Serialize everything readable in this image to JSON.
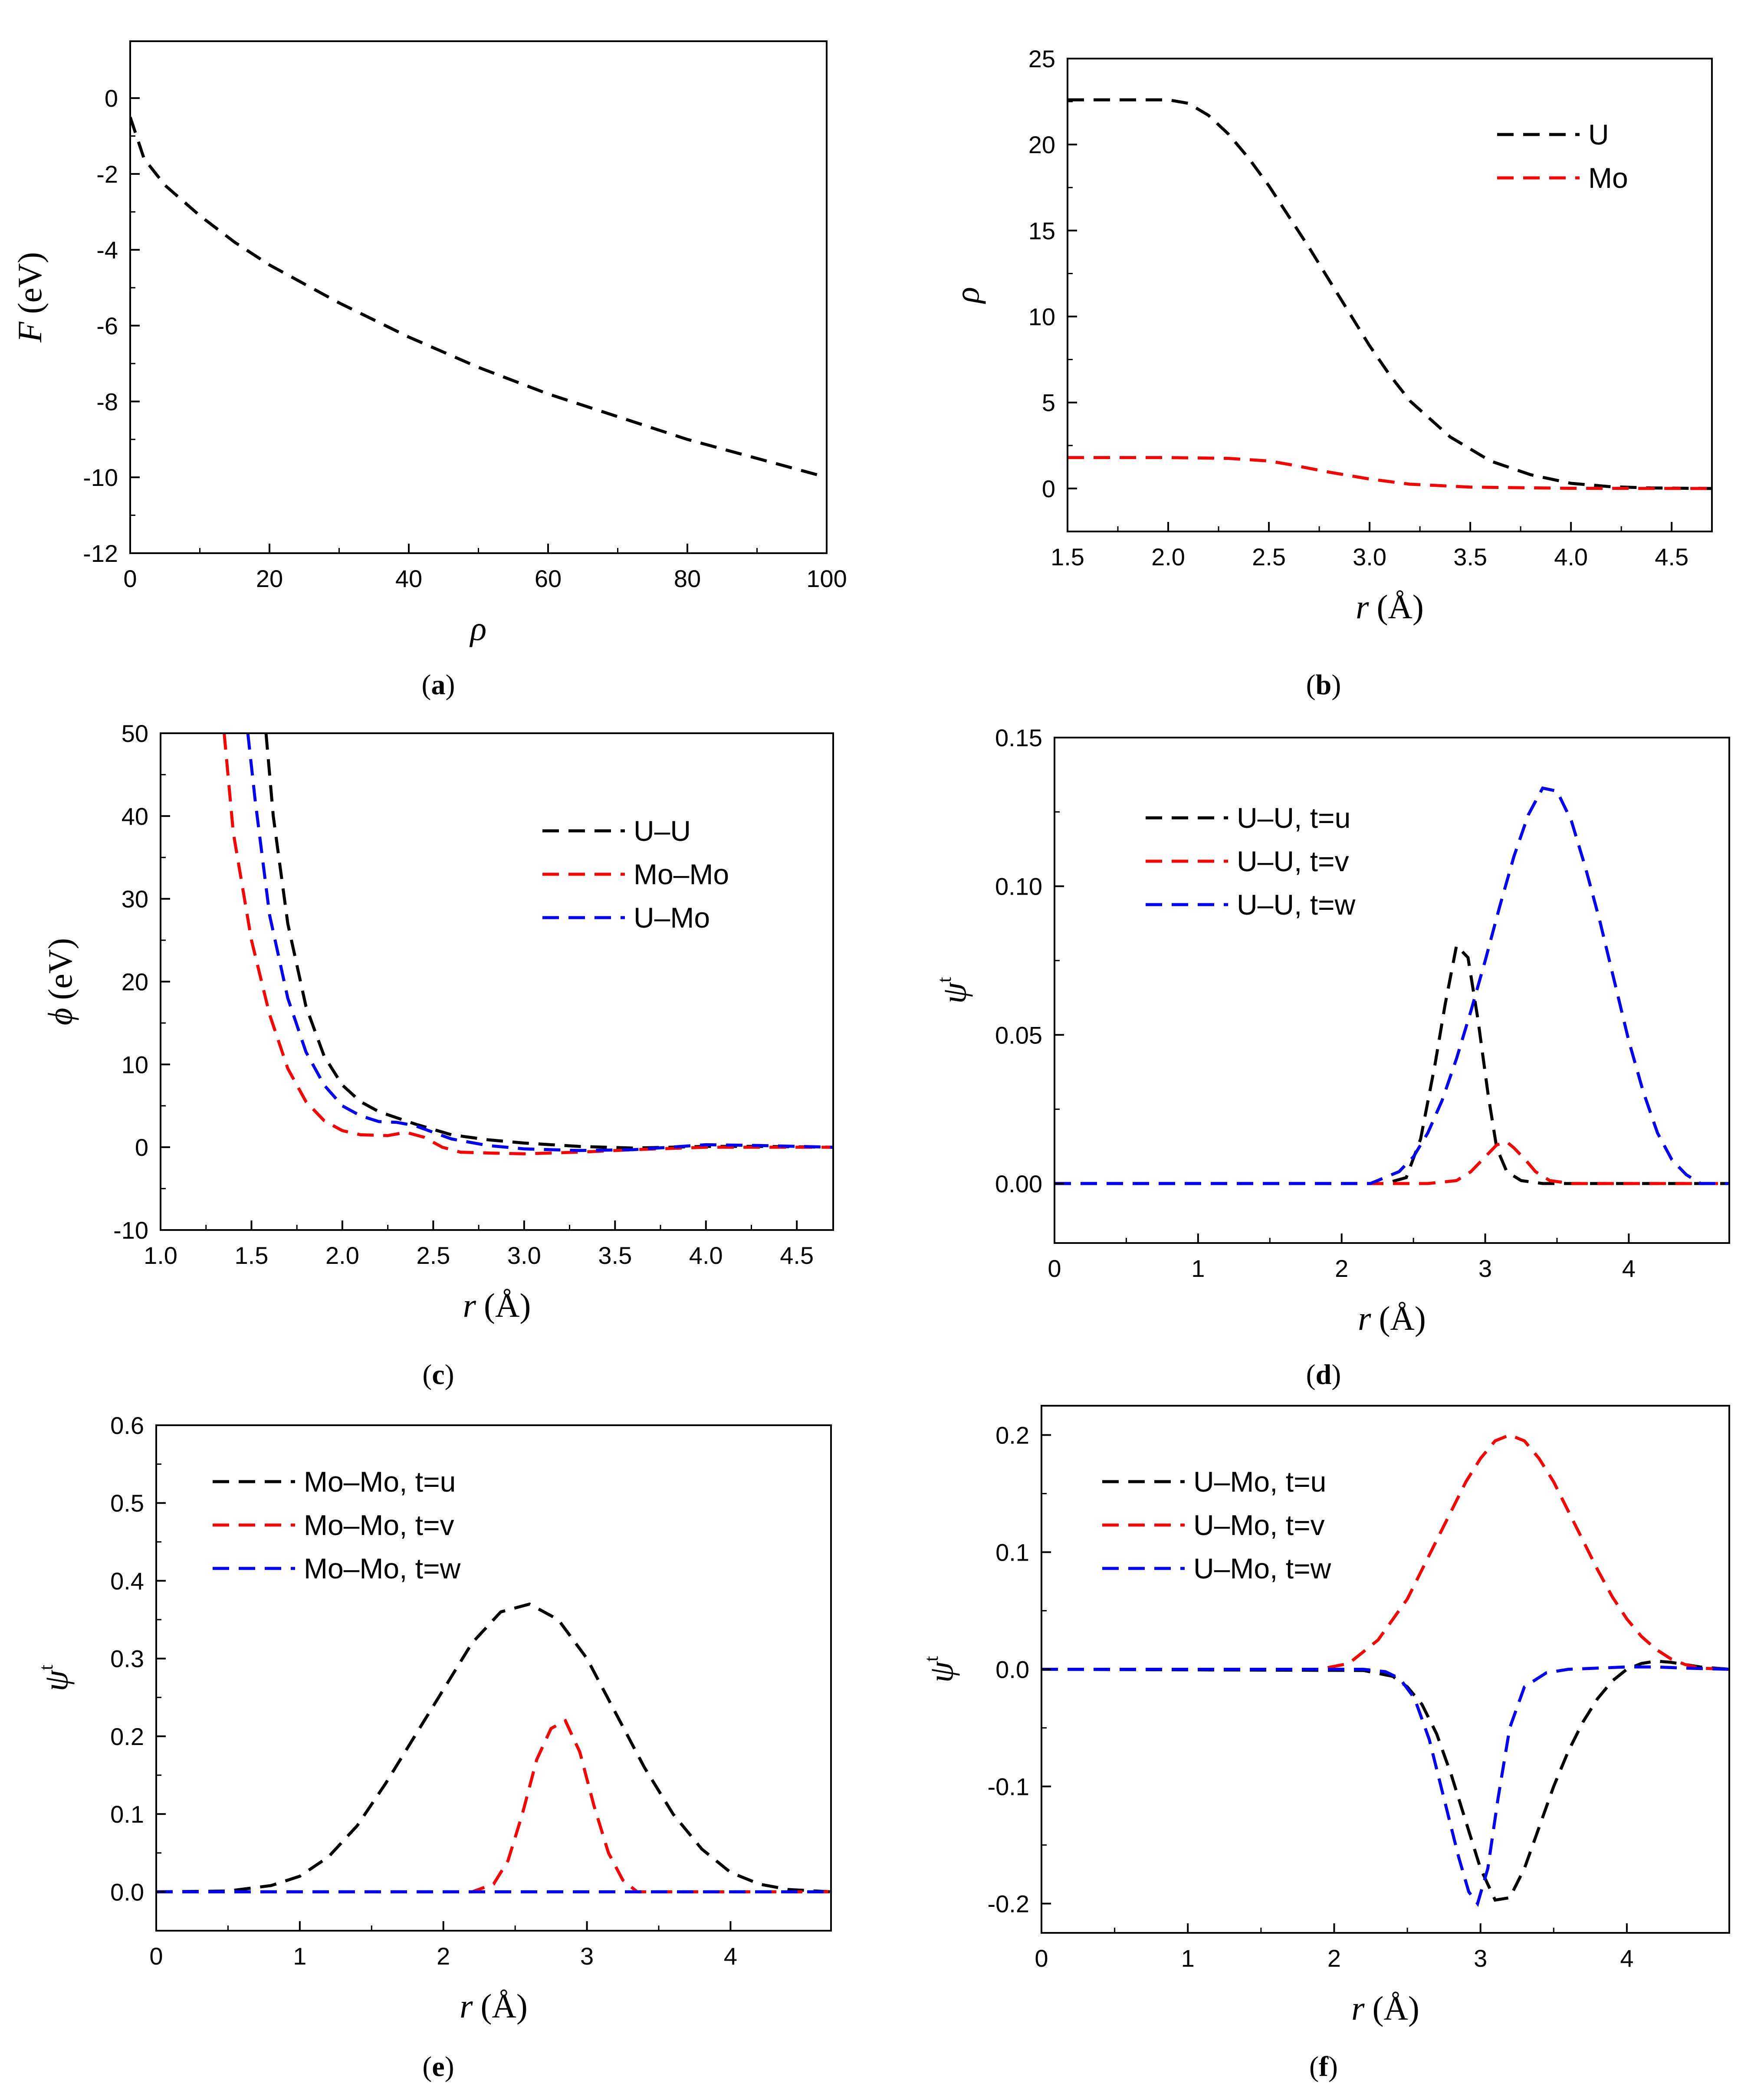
{
  "chart_data": [
    {
      "id": "a",
      "type": "line",
      "caption": "(a)",
      "caption_letter": "a",
      "ylabel_symbol": "F",
      "ylabel_unit": "(eV)",
      "xlabel_symbol": "ρ",
      "xlabel_unit": "",
      "xlim": [
        0,
        100
      ],
      "ylim": [
        -12,
        1.5
      ],
      "xticks": [
        0,
        20,
        40,
        60,
        80,
        100
      ],
      "yticks": [
        0,
        -2,
        -4,
        -6,
        -8,
        -10,
        -12
      ],
      "series": [
        {
          "name": "F",
          "color": "#000000",
          "x": [
            0,
            2,
            5,
            10,
            15,
            20,
            30,
            40,
            50,
            60,
            70,
            80,
            90,
            100
          ],
          "y": [
            -0.5,
            -1.6,
            -2.3,
            -3.1,
            -3.8,
            -4.4,
            -5.4,
            -6.3,
            -7.1,
            -7.8,
            -8.4,
            -9.0,
            -9.5,
            -10.0
          ]
        }
      ],
      "legend": []
    },
    {
      "id": "b",
      "type": "line",
      "caption": "(b)",
      "caption_letter": "b",
      "ylabel_symbol": "ρ",
      "ylabel_unit": "",
      "xlabel_symbol": "r",
      "xlabel_unit": "(Å)",
      "xlim": [
        1.5,
        4.7
      ],
      "ylim": [
        -2.5,
        25
      ],
      "xticks": [
        1.5,
        2.0,
        2.5,
        3.0,
        3.5,
        4.0,
        4.5
      ],
      "xtick_labels": [
        "1.5",
        "2.0",
        "2.5",
        "3.0",
        "3.5",
        "4.0",
        "4.5"
      ],
      "yticks": [
        0,
        5,
        10,
        15,
        20,
        25
      ],
      "series": [
        {
          "name": "U",
          "color": "#000000",
          "x": [
            1.5,
            1.8,
            2.0,
            2.1,
            2.2,
            2.3,
            2.4,
            2.5,
            2.6,
            2.7,
            2.8,
            2.9,
            3.0,
            3.1,
            3.2,
            3.4,
            3.6,
            3.8,
            4.0,
            4.2,
            4.4,
            4.7
          ],
          "y": [
            22.6,
            22.6,
            22.6,
            22.4,
            21.7,
            20.6,
            19.2,
            17.6,
            15.8,
            14.0,
            12.1,
            10.2,
            8.3,
            6.6,
            5.1,
            3.0,
            1.6,
            0.8,
            0.3,
            0.1,
            0.03,
            0
          ]
        },
        {
          "name": "Mo",
          "color": "#ff0000",
          "x": [
            1.5,
            2.0,
            2.3,
            2.5,
            2.6,
            2.8,
            3.0,
            3.2,
            3.5,
            4.0,
            4.7
          ],
          "y": [
            1.8,
            1.8,
            1.75,
            1.6,
            1.4,
            0.95,
            0.55,
            0.25,
            0.08,
            0.01,
            0
          ]
        }
      ],
      "legend": [
        "U",
        "Mo"
      ]
    },
    {
      "id": "c",
      "type": "line",
      "caption": "(c)",
      "caption_letter": "c",
      "ylabel_symbol": "ϕ",
      "ylabel_unit": "(eV)",
      "xlabel_symbol": "r",
      "xlabel_unit": "(Å)",
      "xlim": [
        1.0,
        4.7
      ],
      "ylim": [
        -10,
        50
      ],
      "xticks": [
        1.0,
        1.5,
        2.0,
        2.5,
        3.0,
        3.5,
        4.0,
        4.5
      ],
      "xtick_labels": [
        "1.0",
        "1.5",
        "2.0",
        "2.5",
        "3.0",
        "3.5",
        "4.0",
        "4.5"
      ],
      "yticks": [
        -10,
        0,
        10,
        20,
        30,
        40,
        50
      ],
      "series": [
        {
          "name": "U–U",
          "color": "#000000",
          "x": [
            1.58,
            1.62,
            1.7,
            1.8,
            1.9,
            2.0,
            2.1,
            2.2,
            2.4,
            2.6,
            2.8,
            3.0,
            3.3,
            3.6,
            4.0,
            4.3,
            4.7
          ],
          "y": [
            50,
            40,
            27,
            17,
            11,
            7.5,
            5.5,
            4.3,
            2.8,
            1.5,
            0.9,
            0.5,
            0.1,
            -0.1,
            0.1,
            0.1,
            0
          ]
        },
        {
          "name": "Mo–Mo",
          "color": "#ff0000",
          "x": [
            1.35,
            1.4,
            1.5,
            1.6,
            1.7,
            1.8,
            1.9,
            2.0,
            2.1,
            2.25,
            2.35,
            2.45,
            2.55,
            2.65,
            2.8,
            3.0,
            3.3,
            3.6,
            4.0,
            4.3,
            4.7
          ],
          "y": [
            50,
            38,
            25,
            16,
            9.5,
            5.5,
            3.2,
            2.0,
            1.5,
            1.4,
            1.8,
            1.2,
            0.0,
            -0.6,
            -0.7,
            -0.8,
            -0.6,
            -0.3,
            0.0,
            0.0,
            0
          ]
        },
        {
          "name": "U–Mo",
          "color": "#0000ff",
          "x": [
            1.48,
            1.52,
            1.6,
            1.7,
            1.8,
            1.9,
            2.0,
            2.1,
            2.2,
            2.3,
            2.4,
            2.6,
            2.8,
            3.0,
            3.3,
            3.6,
            4.0,
            4.3,
            4.7
          ],
          "y": [
            50,
            42,
            28,
            18,
            11.5,
            7.5,
            5.0,
            3.8,
            3.1,
            3.0,
            2.6,
            1.0,
            0.2,
            -0.2,
            -0.4,
            -0.3,
            0.3,
            0.2,
            0
          ]
        }
      ],
      "legend": [
        "U–U",
        "Mo–Mo",
        "U–Mo"
      ]
    },
    {
      "id": "d",
      "type": "line",
      "caption": "(d)",
      "caption_letter": "d",
      "ylabel_symbol": "ψ",
      "ylabel_sup": "t",
      "ylabel_unit": "",
      "xlabel_symbol": "r",
      "xlabel_unit": "(Å)",
      "xlim": [
        0,
        4.7
      ],
      "ylim": [
        -0.02,
        0.15
      ],
      "xticks": [
        0,
        1,
        2,
        3,
        4
      ],
      "xtick_labels": [
        "0",
        "1",
        "2",
        "3",
        "4"
      ],
      "yticks": [
        0.0,
        0.05,
        0.1,
        0.15
      ],
      "ytick_labels": [
        "0.00",
        "0.05",
        "0.10",
        "0.15"
      ],
      "series": [
        {
          "name": "U–U, t=u",
          "color": "#000000",
          "x": [
            0,
            2.3,
            2.45,
            2.55,
            2.65,
            2.72,
            2.8,
            2.88,
            2.95,
            3.02,
            3.08,
            3.15,
            3.25,
            3.4,
            4.7
          ],
          "y": [
            0,
            0,
            0.002,
            0.015,
            0.04,
            0.06,
            0.08,
            0.076,
            0.055,
            0.03,
            0.012,
            0.004,
            0.001,
            0,
            0
          ]
        },
        {
          "name": "U–U, t=v",
          "color": "#ff0000",
          "x": [
            0,
            2.6,
            2.8,
            2.9,
            3.0,
            3.08,
            3.15,
            3.2,
            3.28,
            3.35,
            3.45,
            3.6,
            4.7
          ],
          "y": [
            0,
            0,
            0.001,
            0.004,
            0.009,
            0.013,
            0.014,
            0.012,
            0.008,
            0.004,
            0.001,
            0,
            0
          ]
        },
        {
          "name": "U–U, t=w",
          "color": "#0000ff",
          "x": [
            0,
            2.2,
            2.4,
            2.5,
            2.6,
            2.7,
            2.8,
            2.9,
            3.0,
            3.1,
            3.2,
            3.3,
            3.4,
            3.5,
            3.6,
            3.7,
            3.8,
            3.9,
            4.0,
            4.1,
            4.2,
            4.3,
            4.4,
            4.5,
            4.7
          ],
          "y": [
            0,
            0,
            0.004,
            0.009,
            0.017,
            0.028,
            0.042,
            0.058,
            0.075,
            0.093,
            0.11,
            0.124,
            0.133,
            0.132,
            0.122,
            0.106,
            0.088,
            0.068,
            0.048,
            0.031,
            0.017,
            0.008,
            0.003,
            0,
            0
          ]
        }
      ],
      "legend": [
        "U–U, t=u",
        "U–U, t=v",
        "U–U, t=w"
      ]
    },
    {
      "id": "e",
      "type": "line",
      "caption": "(e)",
      "caption_letter": "e",
      "ylabel_symbol": "ψ",
      "ylabel_sup": "t",
      "ylabel_unit": "",
      "xlabel_symbol": "r",
      "xlabel_unit": "(Å)",
      "xlim": [
        0,
        4.7
      ],
      "ylim": [
        -0.05,
        0.6
      ],
      "xticks": [
        0,
        1,
        2,
        3,
        4
      ],
      "xtick_labels": [
        "0",
        "1",
        "2",
        "3",
        "4"
      ],
      "yticks": [
        0.0,
        0.1,
        0.2,
        0.3,
        0.4,
        0.5,
        0.6
      ],
      "ytick_labels": [
        "0.0",
        "0.1",
        "0.2",
        "0.3",
        "0.4",
        "0.5",
        "0.6"
      ],
      "series": [
        {
          "name": "Mo–Mo, t=u",
          "color": "#000000",
          "x": [
            0,
            0.5,
            0.8,
            1.0,
            1.2,
            1.4,
            1.6,
            1.8,
            2.0,
            2.2,
            2.4,
            2.6,
            2.8,
            3.0,
            3.2,
            3.4,
            3.6,
            3.8,
            4.0,
            4.2,
            4.4,
            4.7
          ],
          "y": [
            0,
            0.001,
            0.008,
            0.02,
            0.045,
            0.085,
            0.14,
            0.2,
            0.26,
            0.32,
            0.36,
            0.37,
            0.35,
            0.3,
            0.23,
            0.16,
            0.1,
            0.055,
            0.025,
            0.01,
            0.003,
            0
          ]
        },
        {
          "name": "Mo–Mo, t=v",
          "color": "#ff0000",
          "x": [
            0,
            2.2,
            2.35,
            2.45,
            2.55,
            2.65,
            2.75,
            2.85,
            2.95,
            3.05,
            3.15,
            3.25,
            3.35,
            4.7
          ],
          "y": [
            0,
            0,
            0.01,
            0.04,
            0.1,
            0.17,
            0.21,
            0.22,
            0.18,
            0.11,
            0.05,
            0.015,
            0,
            0
          ]
        },
        {
          "name": "Mo–Mo, t=w",
          "color": "#0000ff",
          "x": [
            0,
            4.7
          ],
          "y": [
            0,
            0
          ]
        }
      ],
      "legend": [
        "Mo–Mo, t=u",
        "Mo–Mo, t=v",
        "Mo–Mo, t=w"
      ]
    },
    {
      "id": "f",
      "type": "line",
      "caption": "(f)",
      "caption_letter": "f",
      "ylabel_symbol": "ψ",
      "ylabel_sup": "t",
      "ylabel_unit": "",
      "xlabel_symbol": "r",
      "xlabel_unit": "(Å)",
      "xlim": [
        0,
        4.7
      ],
      "ylim": [
        -0.225,
        0.225
      ],
      "xticks": [
        0,
        1,
        2,
        3,
        4
      ],
      "xtick_labels": [
        "0",
        "1",
        "2",
        "3",
        "4"
      ],
      "yticks": [
        -0.2,
        -0.1,
        0.0,
        0.1,
        0.2
      ],
      "ytick_labels": [
        "-0.2",
        "-0.1",
        "0.0",
        "0.1",
        "0.2"
      ],
      "series": [
        {
          "name": "U–Mo, t=u",
          "color": "#000000",
          "x": [
            0,
            2.2,
            2.4,
            2.5,
            2.6,
            2.7,
            2.8,
            2.9,
            3.0,
            3.1,
            3.2,
            3.3,
            3.4,
            3.5,
            3.6,
            3.7,
            3.8,
            3.9,
            4.0,
            4.1,
            4.2,
            4.3,
            4.4,
            4.5,
            4.7
          ],
          "y": [
            0,
            -0.001,
            -0.006,
            -0.015,
            -0.03,
            -0.055,
            -0.09,
            -0.13,
            -0.17,
            -0.197,
            -0.195,
            -0.17,
            -0.135,
            -0.1,
            -0.07,
            -0.045,
            -0.025,
            -0.01,
            0.0,
            0.005,
            0.007,
            0.006,
            0.004,
            0.002,
            0
          ]
        },
        {
          "name": "U–Mo, t=v",
          "color": "#ff0000",
          "x": [
            0,
            1.9,
            2.1,
            2.3,
            2.5,
            2.7,
            2.9,
            3.0,
            3.1,
            3.2,
            3.3,
            3.4,
            3.5,
            3.6,
            3.7,
            3.8,
            3.9,
            4.0,
            4.1,
            4.2,
            4.3,
            4.4,
            4.5,
            4.7
          ],
          "y": [
            0,
            0,
            0.005,
            0.025,
            0.06,
            0.11,
            0.16,
            0.18,
            0.195,
            0.2,
            0.195,
            0.18,
            0.16,
            0.135,
            0.11,
            0.085,
            0.062,
            0.043,
            0.028,
            0.017,
            0.009,
            0.004,
            0.001,
            0
          ]
        },
        {
          "name": "U–Mo, t=w",
          "color": "#0000ff",
          "x": [
            0,
            2.2,
            2.35,
            2.45,
            2.55,
            2.65,
            2.75,
            2.85,
            2.92,
            2.98,
            3.05,
            3.12,
            3.2,
            3.3,
            3.45,
            3.6,
            3.8,
            4.0,
            4.2,
            4.4,
            4.7
          ],
          "y": [
            0,
            0,
            -0.002,
            -0.008,
            -0.025,
            -0.06,
            -0.11,
            -0.16,
            -0.19,
            -0.2,
            -0.17,
            -0.11,
            -0.05,
            -0.015,
            -0.003,
            0.0,
            0.001,
            0.002,
            0.002,
            0.001,
            0
          ]
        }
      ],
      "legend": [
        "U–Mo, t=u",
        "U–Mo, t=v",
        "U–Mo, t=w"
      ]
    }
  ]
}
